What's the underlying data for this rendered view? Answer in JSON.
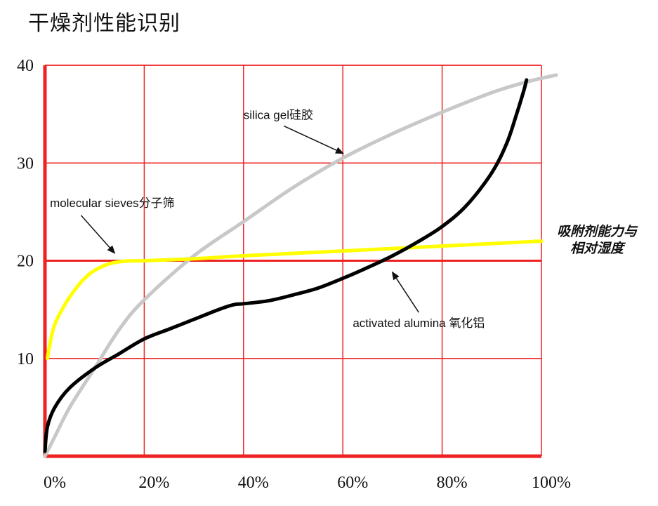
{
  "title": "干燥剂性能识别",
  "side_note": {
    "line1": "吸附剂能力与",
    "line2": "相对湿度"
  },
  "chart_data": {
    "type": "line",
    "title": "干燥剂性能识别",
    "xlabel": "",
    "ylabel": "",
    "xlim": [
      0,
      100
    ],
    "ylim": [
      0,
      40
    ],
    "x_ticks": [
      0,
      20,
      40,
      60,
      80,
      100
    ],
    "x_tick_labels": [
      "0%",
      "20%",
      "40%",
      "60%",
      "80%",
      "100%"
    ],
    "y_ticks": [
      10,
      20,
      30,
      40
    ],
    "y_tick_labels": [
      "10",
      "20",
      "30",
      "40"
    ],
    "grid": true,
    "grid_color": "#ee2222",
    "series": [
      {
        "name": "silica gel硅胶",
        "color": "#c8c8c8",
        "x": [
          0,
          2,
          5,
          10,
          15,
          20,
          30,
          40,
          50,
          60,
          70,
          80,
          90,
          97,
          103
        ],
        "y": [
          0,
          2,
          5,
          9,
          13,
          16,
          20.5,
          24,
          27.5,
          30.5,
          33,
          35.2,
          37.2,
          38.3,
          39
        ]
      },
      {
        "name": "molecular sieves分子筛",
        "color": "#ffff00",
        "x": [
          0.5,
          1,
          2,
          4,
          6,
          8,
          10,
          13,
          16,
          20,
          30,
          40,
          60,
          80,
          100
        ],
        "y": [
          10,
          11.5,
          13.5,
          15.5,
          17,
          18.2,
          19,
          19.7,
          19.95,
          20,
          20.2,
          20.5,
          21,
          21.5,
          22
        ]
      },
      {
        "name": "activated alumina 氧化铝",
        "color": "#000000",
        "x": [
          0,
          0.5,
          2,
          5,
          10,
          15,
          20,
          25,
          30,
          35,
          38,
          40,
          45,
          50,
          55,
          60,
          65,
          70,
          75,
          80,
          85,
          90,
          93,
          95,
          96.5,
          97
        ],
        "y": [
          0.5,
          3,
          5,
          7,
          9,
          10.5,
          12,
          13,
          14,
          15,
          15.5,
          15.6,
          15.9,
          16.5,
          17.2,
          18.2,
          19.3,
          20.5,
          21.9,
          23.5,
          25.7,
          29,
          32,
          35,
          37.5,
          38.5
        ]
      }
    ],
    "annotations": [
      {
        "text": "silica gel硅胶",
        "x": 40,
        "y": 34.5,
        "arrow_to_x": 60,
        "arrow_to_y": 31
      },
      {
        "text": "molecular sieves分子筛",
        "x": 1,
        "y": 25.5,
        "arrow_to_x": 14,
        "arrow_to_y": 20.8
      },
      {
        "text": "activated alumina 氧化铝",
        "x": 62,
        "y": 13.2,
        "arrow_to_x": 70,
        "arrow_to_y": 18.8
      }
    ]
  }
}
